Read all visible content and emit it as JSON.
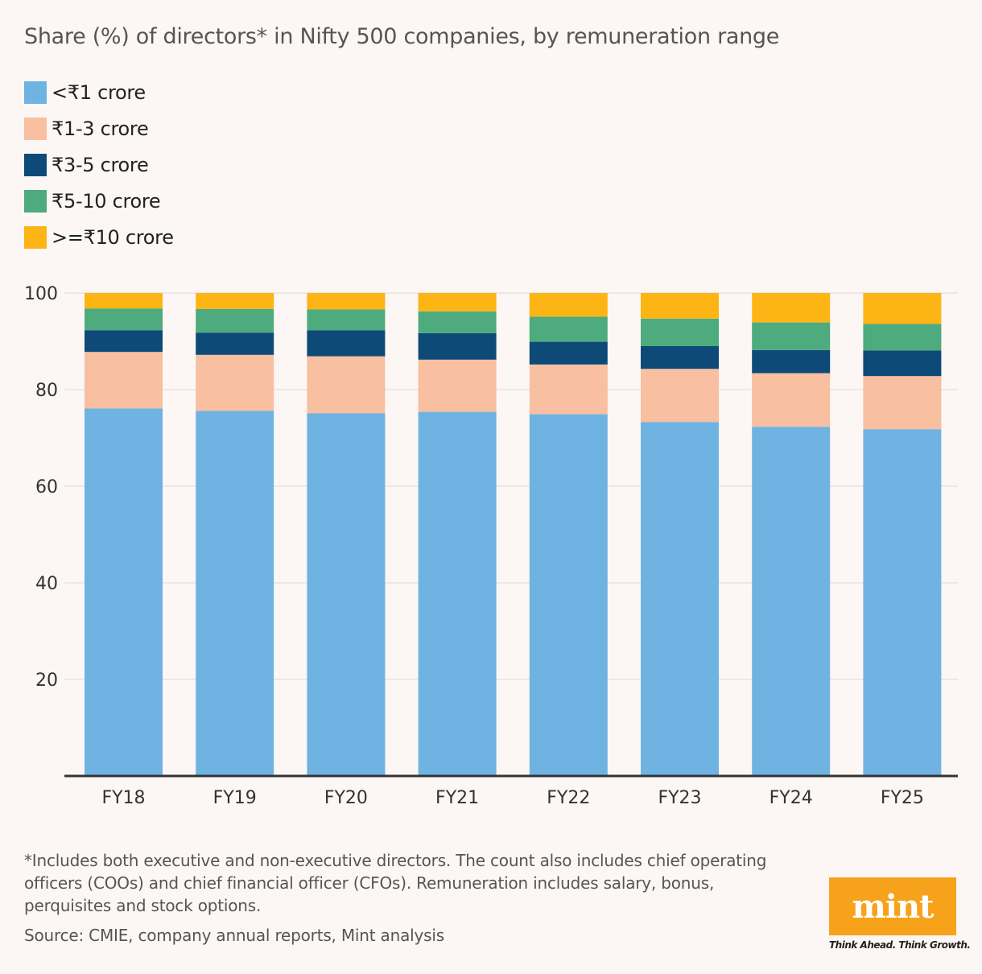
{
  "title": "Share (%) of directors* in Nifty 500 companies, by remuneration range",
  "footnote": "*Includes both executive and non-executive directors. The count also includes chief operating officers (COOs) and chief financial officer (CFOs). Remuneration includes salary, bonus, perquisites and stock options.",
  "source": "Source: CMIE, company annual reports, Mint analysis",
  "logo": {
    "text": "mint",
    "tagline": "Think Ahead. Think Growth."
  },
  "chart_data": {
    "type": "bar",
    "stacked": true,
    "categories": [
      "FY18",
      "FY19",
      "FY20",
      "FY21",
      "FY22",
      "FY23",
      "FY24",
      "FY25"
    ],
    "series": [
      {
        "name": "<₹1 crore",
        "color": "#6fb3e3",
        "values": [
          76.1,
          75.6,
          75.1,
          75.4,
          74.9,
          73.3,
          72.3,
          71.8
        ]
      },
      {
        "name": "₹1-3 crore",
        "color": "#f8bfa0",
        "values": [
          11.7,
          11.6,
          11.8,
          10.8,
          10.3,
          11.0,
          11.1,
          11.0
        ]
      },
      {
        "name": "₹3-5 crore",
        "color": "#0d4a78",
        "values": [
          4.5,
          4.6,
          5.4,
          5.5,
          4.7,
          4.7,
          4.8,
          5.3
        ]
      },
      {
        "name": "₹5-10 crore",
        "color": "#4dab7d",
        "values": [
          4.5,
          4.9,
          4.3,
          4.5,
          5.2,
          5.7,
          5.7,
          5.5
        ]
      },
      {
        "name": ">=₹10 crore",
        "color": "#fdb515",
        "values": [
          3.2,
          3.3,
          3.4,
          3.8,
          4.9,
          5.3,
          6.1,
          6.4
        ]
      }
    ],
    "y_ticks": [
      "20",
      "40",
      "60",
      "80",
      "100"
    ],
    "ylim": [
      0,
      100
    ],
    "grid": true,
    "legend_position": "top-left"
  }
}
